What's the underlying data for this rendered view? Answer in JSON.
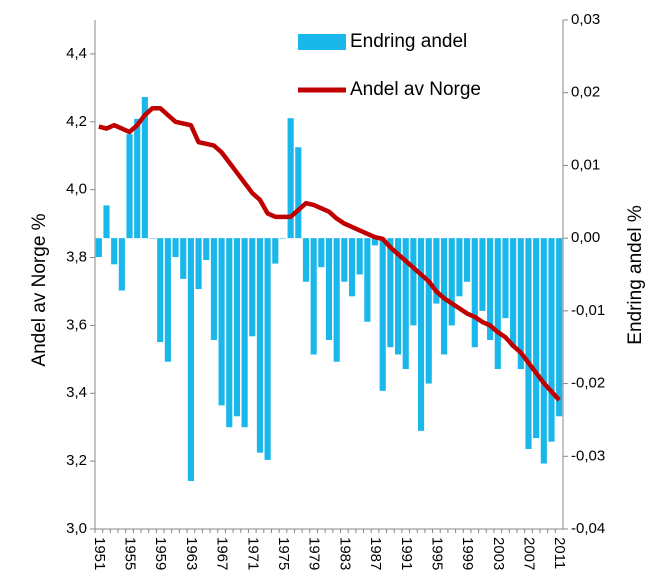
{
  "chart_data": {
    "type": "bar-line",
    "categories": [
      "1951",
      null,
      null,
      null,
      "1955",
      null,
      null,
      null,
      "1959",
      null,
      null,
      null,
      "1963",
      null,
      null,
      null,
      "1967",
      null,
      null,
      null,
      "1971",
      null,
      null,
      null,
      "1975",
      null,
      null,
      null,
      "1979",
      null,
      null,
      null,
      "1983",
      null,
      null,
      null,
      "1987",
      null,
      null,
      null,
      "1991",
      null,
      null,
      null,
      "1995",
      null,
      null,
      null,
      "1999",
      null,
      null,
      null,
      "2003",
      null,
      null,
      null,
      "2007",
      null,
      null,
      null,
      "2011"
    ],
    "series": [
      {
        "name": "Endring andel",
        "type": "bar",
        "axis": "y2",
        "color": "#1ab7ea",
        "values": [
          -0.0026,
          0.0045,
          -0.0036,
          -0.0072,
          0.0143,
          0.0164,
          0.0194,
          0,
          -0.0143,
          -0.017,
          -0.0026,
          -0.0056,
          -0.0334,
          -0.007,
          -0.003,
          -0.014,
          -0.023,
          -0.026,
          -0.0245,
          -0.026,
          -0.0135,
          -0.0295,
          -0.0305,
          -0.0035,
          0,
          0.0165,
          0.0125,
          -0.006,
          -0.016,
          -0.004,
          -0.014,
          -0.017,
          -0.006,
          -0.008,
          -0.005,
          -0.0115,
          -0.001,
          -0.021,
          -0.015,
          -0.016,
          -0.018,
          -0.012,
          -0.0265,
          -0.02,
          -0.009,
          -0.016,
          -0.012,
          -0.008,
          -0.006,
          -0.015,
          -0.01,
          -0.014,
          -0.018,
          -0.011,
          -0.015,
          -0.018,
          -0.029,
          -0.0275,
          -0.031,
          -0.028,
          -0.0245
        ]
      },
      {
        "name": "Andel av Norge",
        "type": "line",
        "axis": "y",
        "color": "#c00000",
        "values": [
          4.186,
          4.18,
          4.19,
          4.18,
          4.17,
          4.19,
          4.22,
          4.24,
          4.24,
          4.22,
          4.2,
          4.195,
          4.19,
          4.14,
          4.135,
          4.13,
          4.11,
          4.08,
          4.05,
          4.02,
          3.99,
          3.97,
          3.93,
          3.92,
          3.92,
          3.92,
          3.94,
          3.96,
          3.955,
          3.945,
          3.935,
          3.915,
          3.9,
          3.89,
          3.88,
          3.87,
          3.86,
          3.855,
          3.83,
          3.81,
          3.79,
          3.77,
          3.75,
          3.73,
          3.7,
          3.68,
          3.665,
          3.65,
          3.635,
          3.625,
          3.61,
          3.6,
          3.58,
          3.565,
          3.54,
          3.52,
          3.49,
          3.46,
          3.43,
          3.405,
          3.38
        ]
      }
    ],
    "y_label": "Andel av Norge %",
    "y2_label": "Endring andel %",
    "ylim": [
      3.0,
      4.5
    ],
    "yticks": [
      {
        "value": 3.0,
        "label": "3,0"
      },
      {
        "value": 3.2,
        "label": "3,2"
      },
      {
        "value": 3.4,
        "label": "3,4"
      },
      {
        "value": 3.6,
        "label": "3,6"
      },
      {
        "value": 3.8,
        "label": "3,8"
      },
      {
        "value": 4.0,
        "label": "4,0"
      },
      {
        "value": 4.2,
        "label": "4,2"
      },
      {
        "value": 4.4,
        "label": "4,4"
      }
    ],
    "y2lim": [
      -0.04,
      0.03
    ],
    "y2ticks": [
      {
        "value": -0.04,
        "label": "-0,04"
      },
      {
        "value": -0.03,
        "label": "-0,03"
      },
      {
        "value": -0.02,
        "label": "-0,02"
      },
      {
        "value": -0.01,
        "label": "-0,01"
      },
      {
        "value": 0,
        "label": "0,00"
      },
      {
        "value": 0.01,
        "label": "0,01"
      },
      {
        "value": 0.02,
        "label": "0,02"
      },
      {
        "value": 0.03,
        "label": "0,03"
      }
    ],
    "legend": "top-right",
    "grid": false
  }
}
